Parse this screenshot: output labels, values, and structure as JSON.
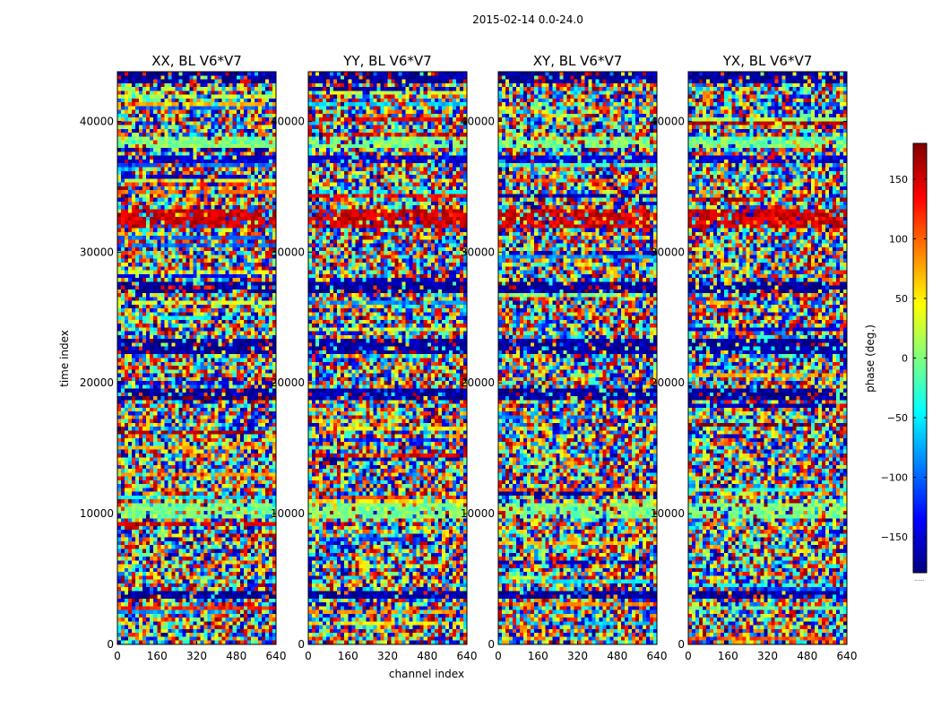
{
  "figure": {
    "suptitle": "2015-02-14 0.0-24.0"
  },
  "chart_data": {
    "type": "heatmap",
    "panels": [
      {
        "title": "XX, BL V6*V7"
      },
      {
        "title": "YY, BL V6*V7"
      },
      {
        "title": "XY, BL V6*V7"
      },
      {
        "title": "YX, BL V6*V7"
      }
    ],
    "xlabel": "channel index",
    "ylabel": "time index",
    "xlim": [
      0,
      640
    ],
    "ylim": [
      0,
      43800
    ],
    "xticks": [
      0,
      160,
      320,
      480,
      640
    ],
    "yticks": [
      0,
      10000,
      20000,
      30000,
      40000
    ],
    "colorbar": {
      "label": "phase (deg.)",
      "range": [
        -180,
        180
      ],
      "ticks": [
        -150,
        -100,
        -50,
        0,
        50,
        100,
        150
      ],
      "colormap": "jet",
      "under_label": "......"
    },
    "band_features": [
      {
        "t": [
          42800,
          43800
        ],
        "phase": -170,
        "note": "dark blue / red band at top"
      },
      {
        "t": [
          38100,
          38900
        ],
        "phase": 0,
        "note": "green row"
      },
      {
        "t": [
          36900,
          37400
        ],
        "phase": -150,
        "note": "blue band (XX, YY)"
      },
      {
        "t": [
          31800,
          33300
        ],
        "phase": 150,
        "note": "red/blue mixed band (XX, YY)"
      },
      {
        "t": [
          26900,
          27600
        ],
        "phase": -170,
        "note": "dark band"
      },
      {
        "t": [
          22200,
          23300
        ],
        "phase": -170,
        "note": "dark blue band (XX, YY)"
      },
      {
        "t": [
          18800,
          19600
        ],
        "phase": -170,
        "note": "dark blue band"
      },
      {
        "t": [
          9600,
          10900
        ],
        "phase": 0,
        "note": "fringe band"
      },
      {
        "t": [
          3500,
          4200
        ],
        "phase": -170,
        "note": "dark band"
      }
    ],
    "colors": {
      "jet_stops": [
        "#00007f",
        "#0000ff",
        "#007fff",
        "#00ffff",
        "#7fff7f",
        "#ffff00",
        "#ff7f00",
        "#ff0000",
        "#7f0000"
      ]
    }
  }
}
